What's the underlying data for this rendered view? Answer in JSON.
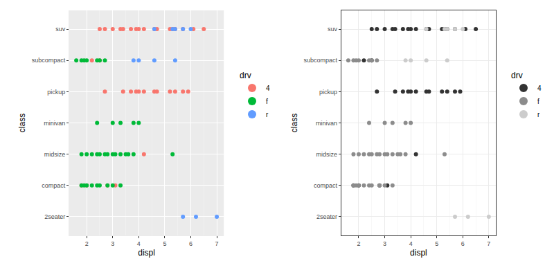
{
  "chart_data": [
    {
      "type": "scatter",
      "x_label": "displ",
      "y_label": "class",
      "legend_title": "drv",
      "categories": [
        "2seater",
        "compact",
        "midsize",
        "minivan",
        "pickup",
        "subcompact",
        "suv"
      ],
      "xlim": [
        1.33,
        7.27
      ],
      "xticks": [
        2,
        3,
        4,
        5,
        6,
        7
      ],
      "grid": true,
      "legend": "right",
      "marker": "circle",
      "series": [
        {
          "name": "4",
          "color": "#F8766D",
          "x": [
            2.5,
            2.7,
            3.0,
            3.3,
            3.4,
            3.7,
            3.9,
            4.0,
            4.2,
            4.6,
            4.7,
            5.2,
            5.3,
            5.4,
            5.7,
            6.1,
            6.5,
            2.2,
            2.5,
            2.7,
            3.4,
            3.7,
            3.9,
            4.0,
            4.2,
            4.6,
            4.7,
            5.2,
            5.4,
            5.7,
            5.9,
            4.2,
            1.8,
            2.0,
            2.8,
            3.1
          ],
          "y": [
            "suv",
            "suv",
            "suv",
            "suv",
            "suv",
            "suv",
            "suv",
            "suv",
            "suv",
            "suv",
            "suv",
            "suv",
            "suv",
            "suv",
            "suv",
            "suv",
            "suv",
            "subcompact",
            "subcompact",
            "pickup",
            "pickup",
            "pickup",
            "pickup",
            "pickup",
            "pickup",
            "pickup",
            "pickup",
            "pickup",
            "pickup",
            "pickup",
            "pickup",
            "midsize",
            "compact",
            "compact",
            "compact",
            "compact"
          ]
        },
        {
          "name": "f",
          "color": "#00BA38",
          "x": [
            1.6,
            1.8,
            1.9,
            2.0,
            2.4,
            2.5,
            2.7,
            2.4,
            3.0,
            3.3,
            3.8,
            4.0,
            1.8,
            2.0,
            2.2,
            2.4,
            2.5,
            2.7,
            2.8,
            3.0,
            3.1,
            3.3,
            3.5,
            3.6,
            3.8,
            5.3,
            1.8,
            1.9,
            2.0,
            2.2,
            2.4,
            2.5,
            2.8,
            3.0,
            3.3
          ],
          "y": [
            "subcompact",
            "subcompact",
            "subcompact",
            "subcompact",
            "subcompact",
            "subcompact",
            "subcompact",
            "minivan",
            "minivan",
            "minivan",
            "minivan",
            "minivan",
            "midsize",
            "midsize",
            "midsize",
            "midsize",
            "midsize",
            "midsize",
            "midsize",
            "midsize",
            "midsize",
            "midsize",
            "midsize",
            "midsize",
            "midsize",
            "midsize",
            "compact",
            "compact",
            "compact",
            "compact",
            "compact",
            "compact",
            "compact",
            "compact",
            "compact"
          ]
        },
        {
          "name": "r",
          "color": "#619CFF",
          "x": [
            4.6,
            5.3,
            5.4,
            5.7,
            6.0,
            3.8,
            4.0,
            4.6,
            5.4,
            5.7,
            6.2,
            7.0
          ],
          "y": [
            "suv",
            "suv",
            "suv",
            "suv",
            "suv",
            "subcompact",
            "subcompact",
            "subcompact",
            "subcompact",
            "2seater",
            "2seater",
            "2seater"
          ]
        }
      ]
    },
    {
      "type": "scatter",
      "x_label": "displ",
      "y_label": "class",
      "legend_title": "drv",
      "categories": [
        "2seater",
        "compact",
        "midsize",
        "minivan",
        "pickup",
        "subcompact",
        "suv"
      ],
      "xlim": [
        1.33,
        7.27
      ],
      "xticks": [
        2,
        3,
        4,
        5,
        6,
        7
      ],
      "grid": true,
      "legend": "right",
      "marker": "circle",
      "series": [
        {
          "name": "4",
          "color": "#333333",
          "x": [
            2.5,
            2.7,
            3.0,
            3.3,
            3.4,
            3.7,
            3.9,
            4.0,
            4.2,
            4.6,
            4.7,
            5.2,
            5.3,
            5.4,
            5.7,
            6.1,
            6.5,
            2.2,
            2.5,
            2.7,
            3.4,
            3.7,
            3.9,
            4.0,
            4.2,
            4.6,
            4.7,
            5.2,
            5.4,
            5.7,
            5.9,
            4.2,
            1.8,
            2.0,
            2.8,
            3.1
          ],
          "y": [
            "suv",
            "suv",
            "suv",
            "suv",
            "suv",
            "suv",
            "suv",
            "suv",
            "suv",
            "suv",
            "suv",
            "suv",
            "suv",
            "suv",
            "suv",
            "suv",
            "suv",
            "subcompact",
            "subcompact",
            "pickup",
            "pickup",
            "pickup",
            "pickup",
            "pickup",
            "pickup",
            "pickup",
            "pickup",
            "pickup",
            "pickup",
            "pickup",
            "pickup",
            "midsize",
            "compact",
            "compact",
            "compact",
            "compact"
          ]
        },
        {
          "name": "f",
          "color": "#8C8C8C",
          "x": [
            1.6,
            1.8,
            1.9,
            2.0,
            2.4,
            2.5,
            2.7,
            2.4,
            3.0,
            3.3,
            3.8,
            4.0,
            1.8,
            2.0,
            2.2,
            2.4,
            2.5,
            2.7,
            2.8,
            3.0,
            3.1,
            3.3,
            3.5,
            3.6,
            3.8,
            5.3,
            1.8,
            1.9,
            2.0,
            2.2,
            2.4,
            2.5,
            2.8,
            3.0,
            3.3
          ],
          "y": [
            "subcompact",
            "subcompact",
            "subcompact",
            "subcompact",
            "subcompact",
            "subcompact",
            "subcompact",
            "minivan",
            "minivan",
            "minivan",
            "minivan",
            "minivan",
            "midsize",
            "midsize",
            "midsize",
            "midsize",
            "midsize",
            "midsize",
            "midsize",
            "midsize",
            "midsize",
            "midsize",
            "midsize",
            "midsize",
            "midsize",
            "midsize",
            "compact",
            "compact",
            "compact",
            "compact",
            "compact",
            "compact",
            "compact",
            "compact",
            "compact"
          ]
        },
        {
          "name": "r",
          "color": "#CCCCCC",
          "x": [
            4.6,
            5.3,
            5.4,
            5.7,
            6.0,
            3.8,
            4.0,
            4.6,
            5.4,
            5.7,
            6.2,
            7.0
          ],
          "y": [
            "suv",
            "suv",
            "suv",
            "suv",
            "suv",
            "subcompact",
            "subcompact",
            "subcompact",
            "subcompact",
            "2seater",
            "2seater",
            "2seater"
          ]
        }
      ]
    }
  ]
}
